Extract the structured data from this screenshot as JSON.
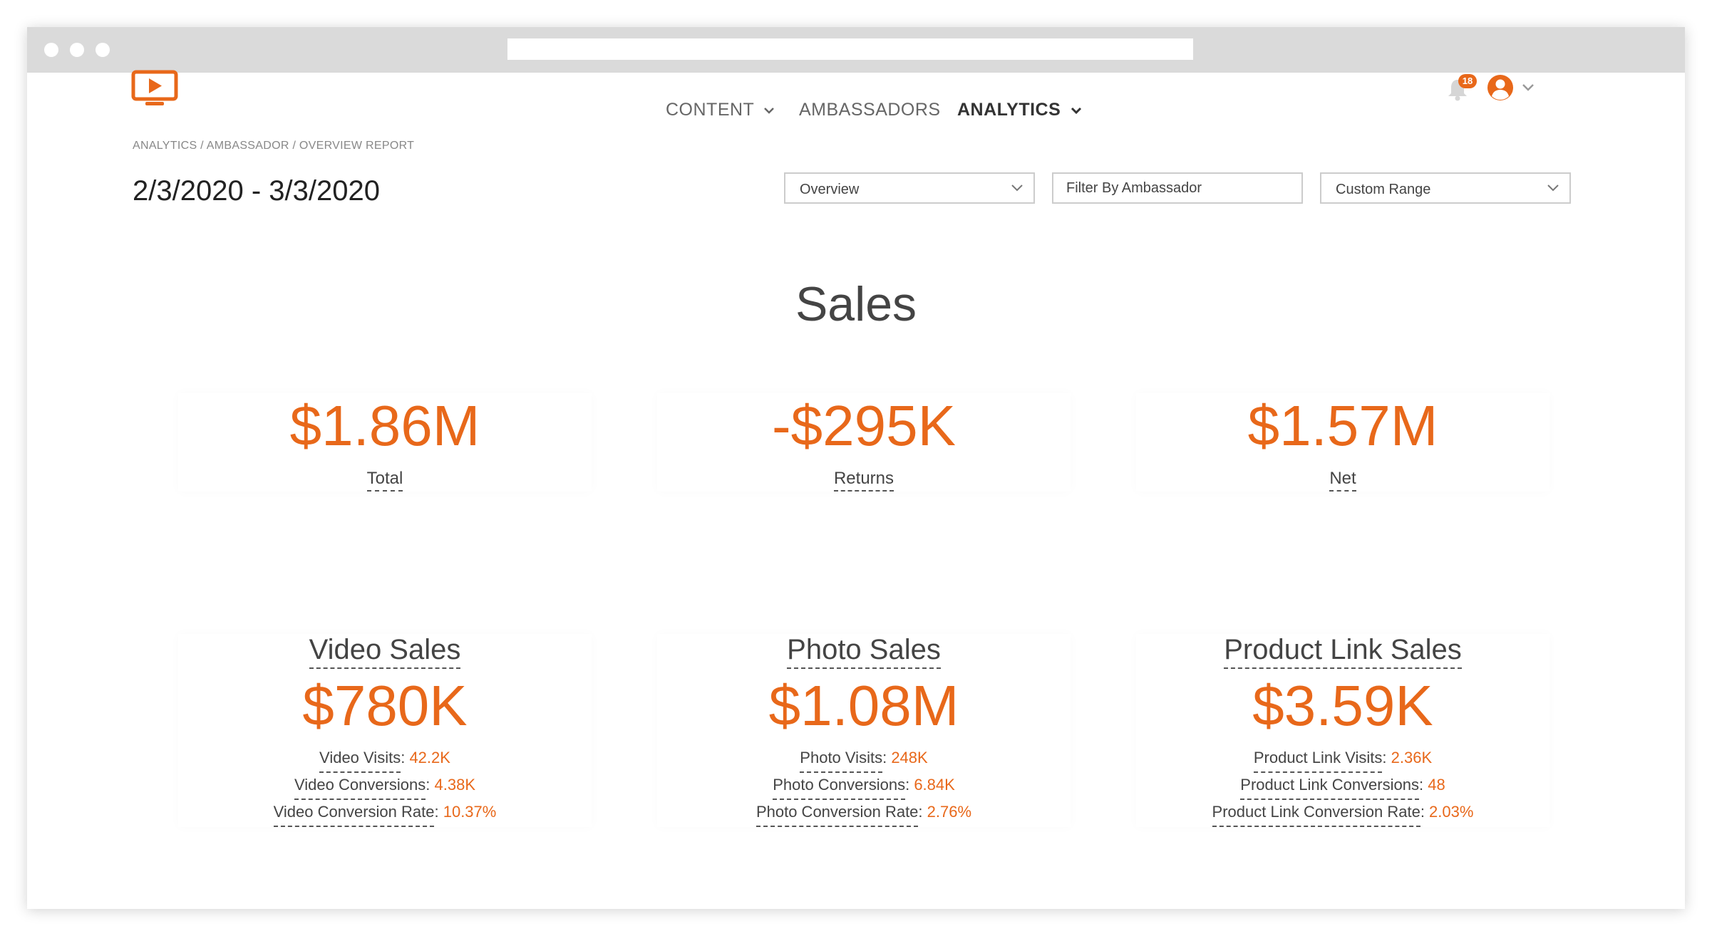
{
  "nav": {
    "items": [
      {
        "label": "CONTENT",
        "has_dropdown": true,
        "active": false
      },
      {
        "label": "AMBASSADORS",
        "has_dropdown": false,
        "active": false
      },
      {
        "label": "ANALYTICS",
        "has_dropdown": true,
        "active": true
      }
    ],
    "notification_count": "18",
    "icons": [
      "logo-icon",
      "bell-icon",
      "avatar-icon",
      "chevron-down-icon"
    ]
  },
  "breadcrumb": "ANALYTICS / AMBASSADOR / OVERVIEW REPORT",
  "date_range": "2/3/2020 - 3/3/2020",
  "filters": {
    "report_select": "Overview",
    "ambassador_placeholder": "Filter By Ambassador",
    "range_select": "Custom Range"
  },
  "sales": {
    "title": "Sales",
    "total": {
      "value": "$1.86M",
      "label": "Total"
    },
    "returns": {
      "value": "-$295K",
      "label": "Returns"
    },
    "net": {
      "value": "$1.57M",
      "label": "Net"
    }
  },
  "breakdown": {
    "video": {
      "title": "Video Sales",
      "value": "$780K",
      "stats": [
        {
          "label": "Video Visits",
          "value": "42.2K"
        },
        {
          "label": "Video Conversions",
          "value": "4.38K"
        },
        {
          "label": "Video Conversion Rate",
          "value": "10.37%"
        }
      ]
    },
    "photo": {
      "title": "Photo Sales",
      "value": "$1.08M",
      "stats": [
        {
          "label": "Photo Visits",
          "value": "248K"
        },
        {
          "label": "Photo Conversions",
          "value": "6.84K"
        },
        {
          "label": "Photo Conversion Rate",
          "value": "2.76%"
        }
      ]
    },
    "product_link": {
      "title": "Product Link Sales",
      "value": "$3.59K",
      "stats": [
        {
          "label": "Product Link Visits",
          "value": "2.36K"
        },
        {
          "label": "Product Link Conversions",
          "value": "48"
        },
        {
          "label": "Product Link Conversion Rate",
          "value": "2.03%"
        }
      ]
    }
  },
  "colors": {
    "accent": "#e8681a",
    "text": "#333333",
    "muted": "#888888"
  }
}
